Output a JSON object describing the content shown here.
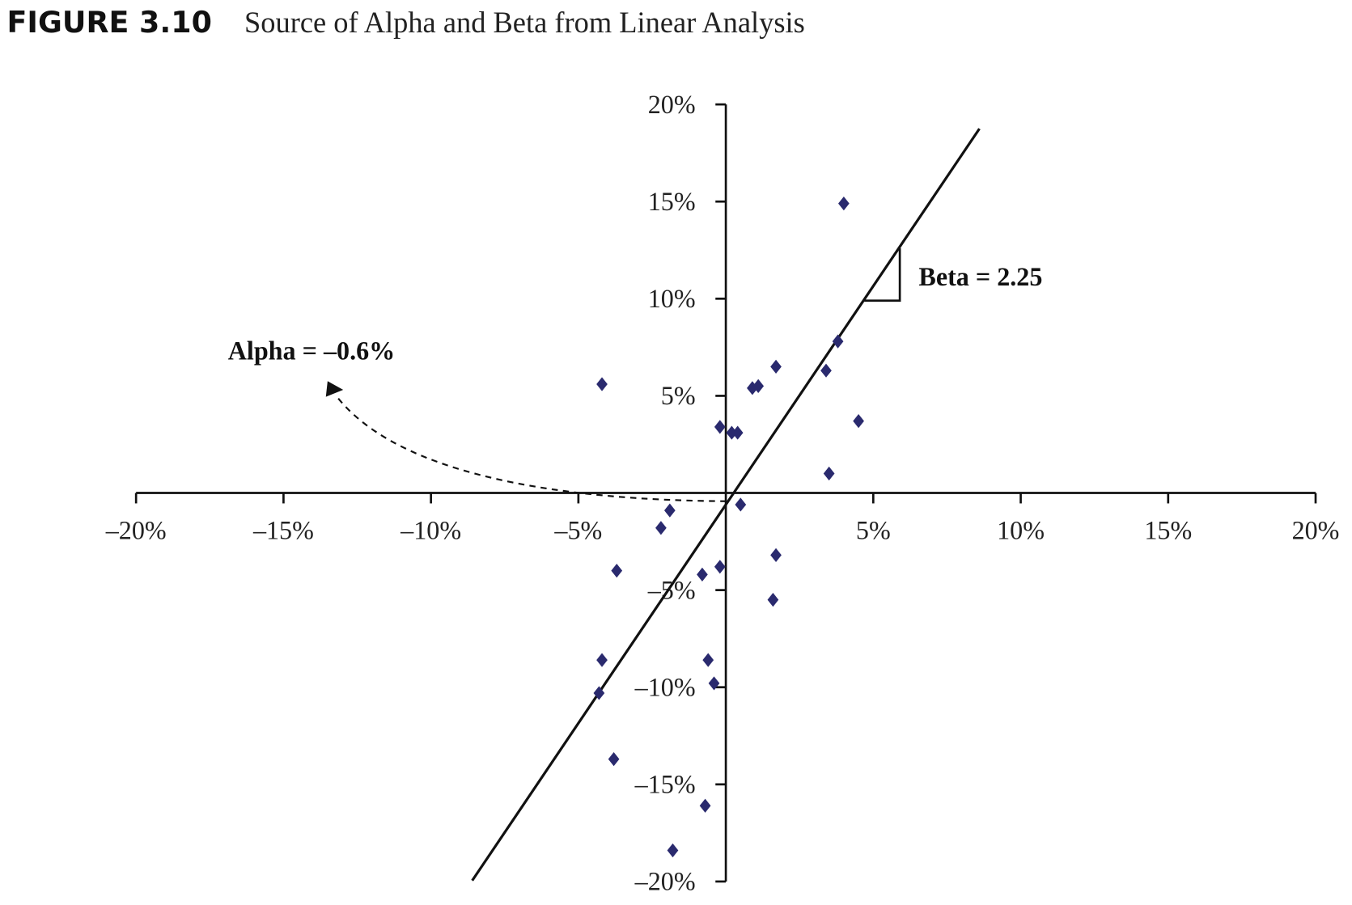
{
  "figure_label": "FIGURE 3.10",
  "figure_title": "Source of Alpha and Beta from Linear Analysis",
  "chart_data": {
    "type": "scatter",
    "title": "Source of Alpha and Beta from Linear Analysis",
    "xlabel": "",
    "ylabel": "",
    "xlim": [
      -20,
      20
    ],
    "ylim": [
      -20,
      20
    ],
    "grid": false,
    "x_ticks": [
      -20,
      -15,
      -10,
      -5,
      5,
      10,
      15,
      20
    ],
    "x_tick_labels": [
      "–20%",
      "–15%",
      "–10%",
      "–5%",
      "5%",
      "10%",
      "15%",
      "20%"
    ],
    "y_ticks": [
      20,
      15,
      10,
      5,
      -5,
      -10,
      -15,
      -20
    ],
    "y_tick_labels": [
      "20%",
      "15%",
      "10%",
      "5%",
      "–5%",
      "–10%",
      "–15%",
      "–20%"
    ],
    "marker_color": "#2a2a6e",
    "points": [
      {
        "x": 4.0,
        "y": 14.9
      },
      {
        "x": 3.8,
        "y": 7.8
      },
      {
        "x": 1.7,
        "y": 6.5
      },
      {
        "x": 3.4,
        "y": 6.3
      },
      {
        "x": -4.2,
        "y": 5.6
      },
      {
        "x": 0.9,
        "y": 5.4
      },
      {
        "x": 1.1,
        "y": 5.5
      },
      {
        "x": 4.5,
        "y": 3.7
      },
      {
        "x": -0.2,
        "y": 3.4
      },
      {
        "x": 0.2,
        "y": 3.1
      },
      {
        "x": 0.4,
        "y": 3.1
      },
      {
        "x": 3.5,
        "y": 1.0
      },
      {
        "x": 0.5,
        "y": -0.6
      },
      {
        "x": -1.9,
        "y": -0.9
      },
      {
        "x": -2.2,
        "y": -1.8
      },
      {
        "x": 1.7,
        "y": -3.2
      },
      {
        "x": -3.7,
        "y": -4.0
      },
      {
        "x": -0.2,
        "y": -3.8
      },
      {
        "x": -0.8,
        "y": -4.2
      },
      {
        "x": 1.6,
        "y": -5.5
      },
      {
        "x": -4.2,
        "y": -8.6
      },
      {
        "x": -0.6,
        "y": -8.6
      },
      {
        "x": -0.4,
        "y": -9.8
      },
      {
        "x": -4.3,
        "y": -10.3
      },
      {
        "x": -3.8,
        "y": -13.7
      },
      {
        "x": -0.7,
        "y": -16.1
      },
      {
        "x": -1.8,
        "y": -18.4
      }
    ],
    "regression": {
      "alpha": -0.6,
      "beta": 2.25,
      "x_range": [
        -8.6,
        8.6
      ]
    },
    "slope_triangle": {
      "x": [
        4.7,
        5.9
      ],
      "y": [
        9.9,
        12.6
      ]
    },
    "annotations": {
      "beta": "Beta = 2.25",
      "alpha": "Alpha = –0.6%"
    }
  }
}
